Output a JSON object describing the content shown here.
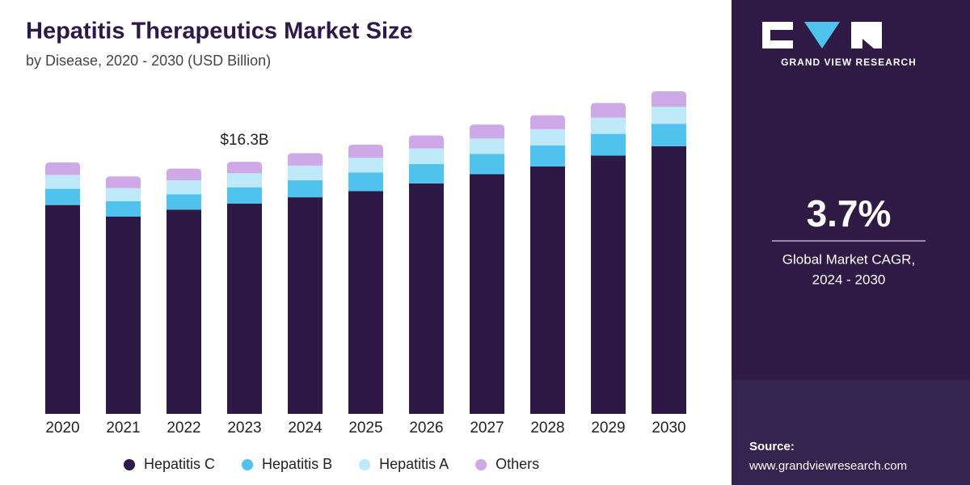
{
  "chart_data": {
    "type": "stacked-bar",
    "title": "Hepatitis Therapeutics Market Size",
    "subtitle": "by Disease, 2020 - 2030 (USD Billion)",
    "categories": [
      "2020",
      "2021",
      "2022",
      "2023",
      "2024",
      "2025",
      "2026",
      "2027",
      "2028",
      "2029",
      "2030"
    ],
    "series": [
      {
        "name": "Hepatitis C",
        "color": "#2d1846",
        "values": [
          13.5,
          12.75,
          13.2,
          13.6,
          14.0,
          14.4,
          14.9,
          15.5,
          16.0,
          16.7,
          17.3
        ]
      },
      {
        "name": "Hepatitis B",
        "color": "#4fc3ee",
        "values": [
          1.05,
          1.0,
          1.0,
          1.05,
          1.1,
          1.2,
          1.25,
          1.3,
          1.35,
          1.4,
          1.45
        ]
      },
      {
        "name": "Hepatitis A",
        "color": "#bde9f8",
        "values": [
          0.9,
          0.85,
          0.9,
          0.9,
          0.95,
          0.95,
          1.0,
          1.0,
          1.05,
          1.05,
          1.1
        ]
      },
      {
        "name": "Others",
        "color": "#cfa8e8",
        "values": [
          0.8,
          0.75,
          0.75,
          0.75,
          0.8,
          0.85,
          0.85,
          0.9,
          0.9,
          0.95,
          1.0
        ]
      }
    ],
    "annotation": {
      "label": "$16.3B",
      "category": "2023"
    },
    "legend": "bottom"
  },
  "side_panel": {
    "brand": "GRAND VIEW RESEARCH",
    "cagr": "3.7%",
    "cagr_label": "Global Market CAGR,",
    "cagr_period": "2024 - 2030",
    "source_label": "Source:",
    "source_url": "www.grandviewresearch.com"
  }
}
